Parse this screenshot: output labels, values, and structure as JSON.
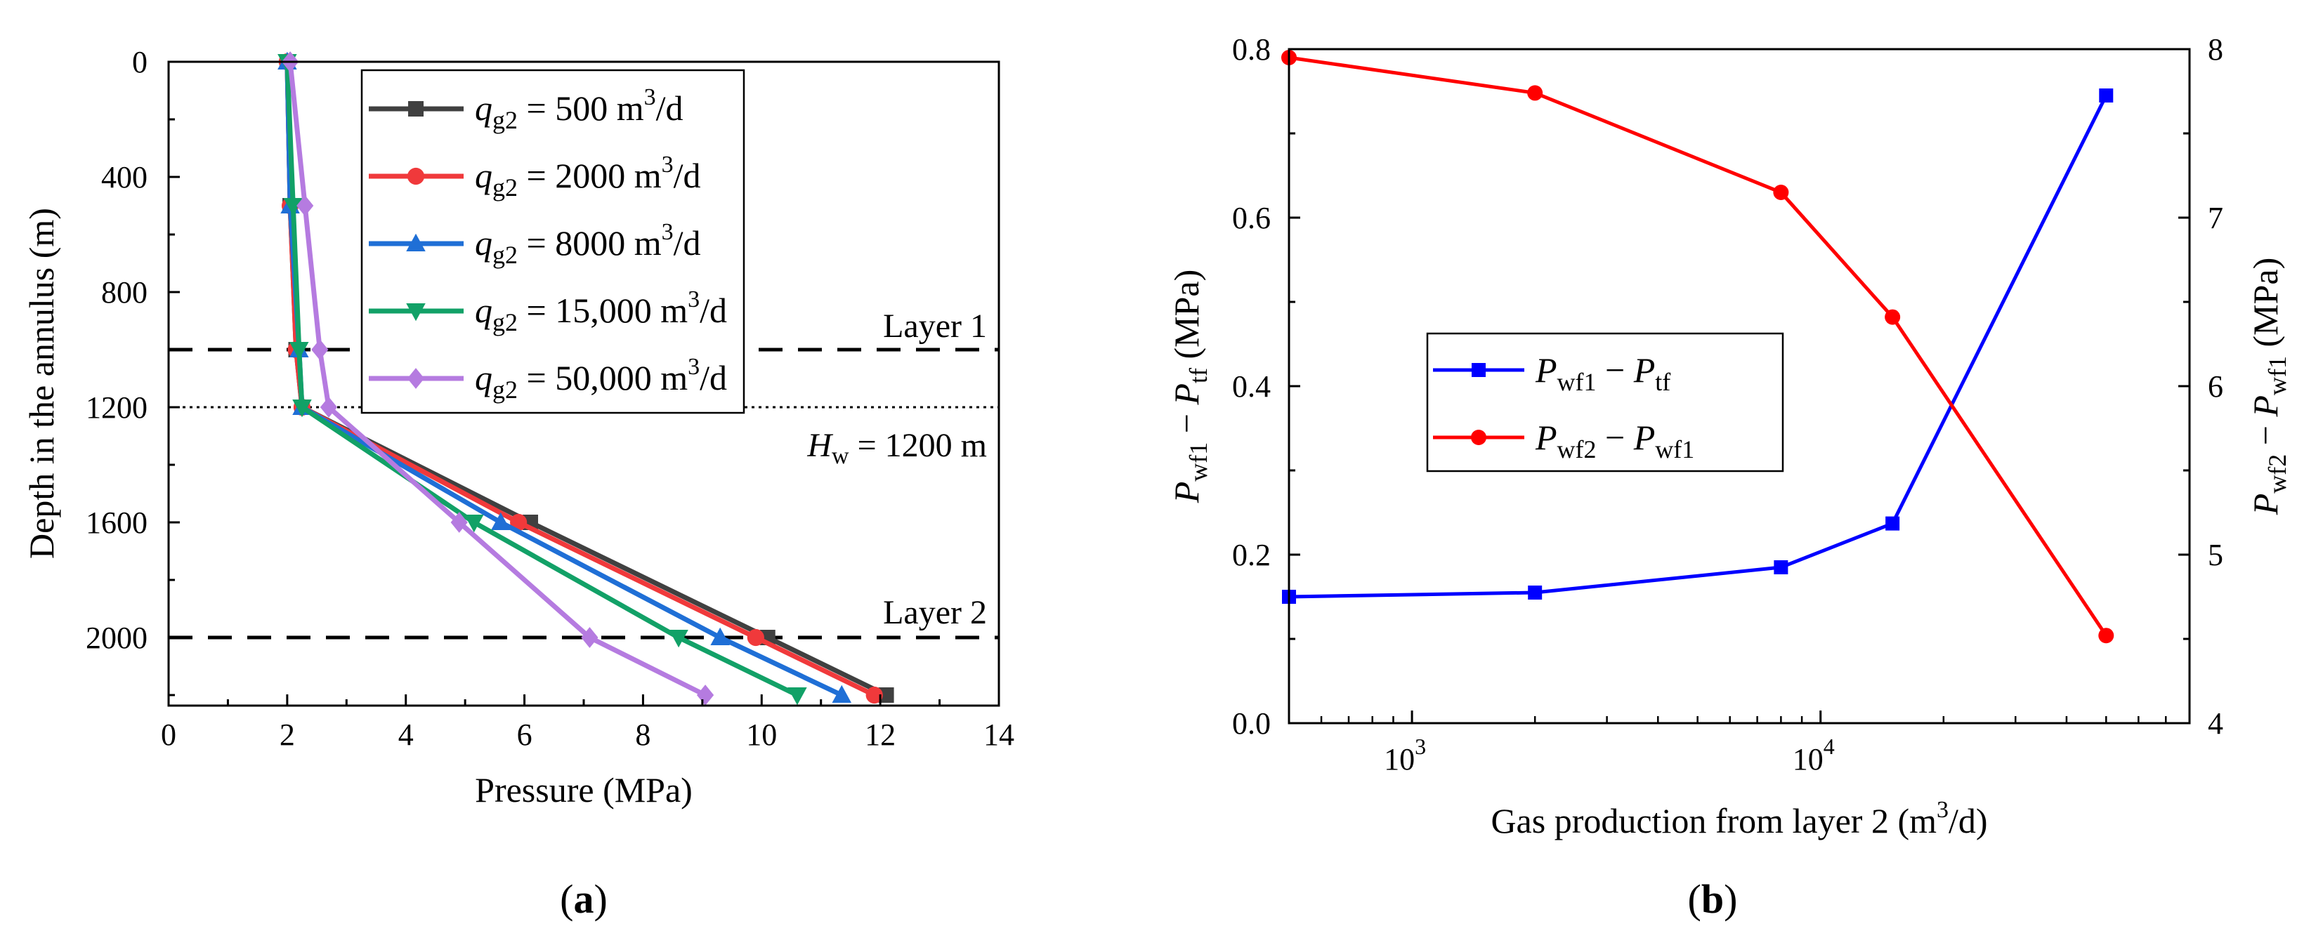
{
  "charts": [
    {
      "caption": "a",
      "chart_data": {
        "type": "line",
        "xlabel": "Pressure (MPa)",
        "ylabel": "Depth in the annulus (m)",
        "xlim": [
          0,
          14
        ],
        "ylim": [
          2250,
          0
        ],
        "y_inverted": true,
        "xticks": [
          "0",
          "2",
          "4",
          "6",
          "8",
          "10",
          "12",
          "14"
        ],
        "yticks": [
          "0",
          "400",
          "800",
          "1200",
          "1600",
          "2000"
        ],
        "legend_position": "top-right",
        "series": [
          {
            "name": "q_g2 = 500 m^3/d",
            "legend": {
              "var": "q",
              "sub": "g2",
              "rest": " = 500 m",
              "sup": "3",
              "tail": "/d"
            },
            "color": "#404040",
            "marker": "square",
            "points": [
              [
                2.0,
                0
              ],
              [
                2.05,
                500
              ],
              [
                2.15,
                1000
              ],
              [
                2.25,
                1200
              ],
              [
                6.1,
                1600
              ],
              [
                10.1,
                2000
              ],
              [
                12.1,
                2200
              ]
            ]
          },
          {
            "name": "q_g2 = 2000 m^3/d",
            "legend": {
              "var": "q",
              "sub": "g2",
              "rest": " = 2000 m",
              "sup": "3",
              "tail": "/d"
            },
            "color": "#f0393b",
            "marker": "circle",
            "points": [
              [
                2.0,
                0
              ],
              [
                2.05,
                500
              ],
              [
                2.15,
                1000
              ],
              [
                2.25,
                1200
              ],
              [
                5.9,
                1600
              ],
              [
                9.9,
                2000
              ],
              [
                11.9,
                2200
              ]
            ]
          },
          {
            "name": "q_g2 = 8000 m^3/d",
            "legend": {
              "var": "q",
              "sub": "g2",
              "rest": " = 8000 m",
              "sup": "3",
              "tail": "/d"
            },
            "color": "#1f6fd6",
            "marker": "triangle-up",
            "points": [
              [
                2.0,
                0
              ],
              [
                2.05,
                500
              ],
              [
                2.2,
                1000
              ],
              [
                2.25,
                1200
              ],
              [
                5.6,
                1600
              ],
              [
                9.3,
                2000
              ],
              [
                11.35,
                2200
              ]
            ]
          },
          {
            "name": "q_g2 = 15,000 m^3/d",
            "legend": {
              "var": "q",
              "sub": "g2",
              "rest": " = 15,000 m",
              "sup": "3",
              "tail": "/d"
            },
            "color": "#12a167",
            "marker": "triangle-down",
            "points": [
              [
                2.0,
                0
              ],
              [
                2.1,
                500
              ],
              [
                2.2,
                1000
              ],
              [
                2.25,
                1200
              ],
              [
                5.15,
                1600
              ],
              [
                8.6,
                2000
              ],
              [
                10.6,
                2200
              ]
            ]
          },
          {
            "name": "q_g2 = 50,000 m^3/d",
            "legend": {
              "var": "q",
              "sub": "g2",
              "rest": " = 50,000 m",
              "sup": "3",
              "tail": "/d"
            },
            "color": "#b57be0",
            "marker": "diamond",
            "points": [
              [
                2.05,
                0
              ],
              [
                2.3,
                500
              ],
              [
                2.55,
                1000
              ],
              [
                2.7,
                1200
              ],
              [
                4.9,
                1600
              ],
              [
                7.1,
                2000
              ],
              [
                9.05,
                2200
              ]
            ]
          }
        ],
        "annotations": [
          {
            "text": "Layer 1",
            "y": 1000,
            "line": "dashed"
          },
          {
            "text": "Layer 2",
            "y": 2000,
            "line": "dashed"
          },
          {
            "var": "H",
            "sub": "w",
            "rest": " = 1200 m",
            "y": 1200,
            "line": "dotted"
          }
        ]
      }
    },
    {
      "caption": "b",
      "chart_data": {
        "type": "line",
        "xlabel": {
          "text": "Gas production from layer 2 (m",
          "sup": "3",
          "tail": "/d)"
        },
        "xscale": "log",
        "xlim": [
          500,
          80000
        ],
        "xticks": [
          {
            "base": "10",
            "exp": "3",
            "value": 1000
          },
          {
            "base": "10",
            "exp": "4",
            "value": 10000
          }
        ],
        "ylabel_left": {
          "a": "P",
          "a_sub": "wf1",
          "op": " − ",
          "b": "P",
          "b_sub": "tf",
          "tail": " (MPa)"
        },
        "ylim_left": [
          0.0,
          0.8
        ],
        "yticks_left": [
          "0.0",
          "0.2",
          "0.4",
          "0.6",
          "0.8"
        ],
        "ylabel_right": {
          "a": "P",
          "a_sub": "wf2",
          "op": " − ",
          "b": "P",
          "b_sub": "wf1",
          "tail": " (MPa)"
        },
        "ylim_right": [
          4,
          8
        ],
        "yticks_right": [
          "4",
          "5",
          "6",
          "7",
          "8"
        ],
        "legend_position": "center-left",
        "series": [
          {
            "name": "P_wf1 − P_tf",
            "legend": {
              "a": "P",
              "a_sub": "wf1",
              "op": " − ",
              "b": "P",
              "b_sub": "tf"
            },
            "axis": "left",
            "color": "#0000ff",
            "marker": "square",
            "x": [
              500,
              2000,
              8000,
              15000,
              50000
            ],
            "y": [
              0.15,
              0.155,
              0.185,
              0.237,
              0.745
            ]
          },
          {
            "name": "P_wf2 − P_wf1",
            "legend": {
              "a": "P",
              "a_sub": "wf2",
              "op": " − ",
              "b": "P",
              "b_sub": "wf1"
            },
            "axis": "right",
            "color": "#ff0000",
            "marker": "circle",
            "x": [
              500,
              2000,
              8000,
              15000,
              50000
            ],
            "y": [
              7.95,
              7.74,
              7.15,
              6.41,
              4.52
            ]
          }
        ]
      }
    }
  ]
}
